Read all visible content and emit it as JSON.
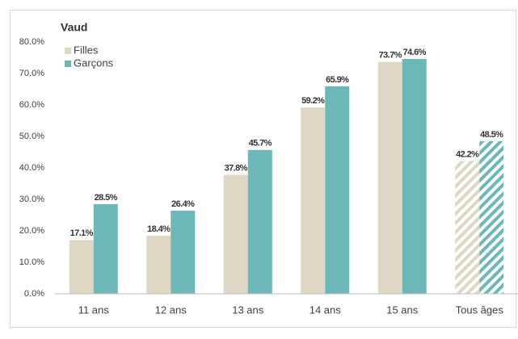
{
  "chart_data": {
    "type": "bar",
    "title": "Vaud",
    "categories": [
      "11 ans",
      "12 ans",
      "13 ans",
      "14 ans",
      "15 ans",
      "Tous âges"
    ],
    "series": [
      {
        "name": "Filles",
        "color": "#ddd7c3",
        "values": [
          17.1,
          18.4,
          37.8,
          59.2,
          73.7,
          42.2
        ],
        "value_labels": [
          "17.1%",
          "18.4%",
          "37.8%",
          "59.2%",
          "73.7%",
          "42.2%"
        ]
      },
      {
        "name": "Garçons",
        "color": "#6cb8b8",
        "values": [
          28.5,
          26.4,
          45.7,
          65.9,
          74.6,
          48.5
        ],
        "value_labels": [
          "28.5%",
          "26.4%",
          "45.7%",
          "65.9%",
          "74.6%",
          "48.5%"
        ]
      }
    ],
    "hatched": [
      false,
      false,
      false,
      false,
      false,
      true
    ],
    "ylim": [
      0,
      80
    ],
    "yticks": [
      {
        "value": 0,
        "label": "0.0%"
      },
      {
        "value": 10,
        "label": "10.0%"
      },
      {
        "value": 20,
        "label": "20.0%"
      },
      {
        "value": 30,
        "label": "30.0%"
      },
      {
        "value": 40,
        "label": "40.0%"
      },
      {
        "value": 50,
        "label": "50.0%"
      },
      {
        "value": 60,
        "label": "60.0%"
      },
      {
        "value": 70,
        "label": "70.0%"
      },
      {
        "value": 80,
        "label": "80.0%"
      }
    ],
    "grid": false,
    "legend": "top-left"
  }
}
